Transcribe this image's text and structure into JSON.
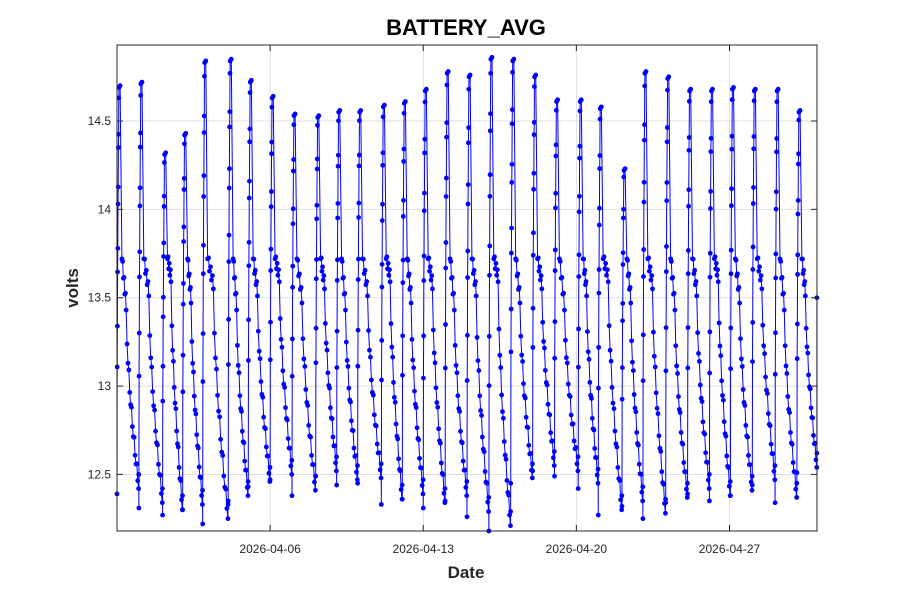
{
  "chart_data": {
    "type": "line",
    "title": "BATTERY_AVG",
    "xlabel": "Date",
    "ylabel": "volts",
    "x_axis_kind": "date",
    "xlim": [
      "2026-03-30T00:00",
      "2026-05-01T00:00"
    ],
    "ylim": [
      12.18,
      14.93
    ],
    "yticks": [
      12.5,
      13,
      13.5,
      14,
      14.5
    ],
    "yticklabels": [
      "12.5",
      "13",
      "13.5",
      "14",
      "14.5"
    ],
    "xticks": [
      "2026-04-06",
      "2026-04-13",
      "2026-04-20",
      "2026-04-27"
    ],
    "xticklabels": [
      "2026-04-06",
      "2026-04-13",
      "2026-04-20",
      "2026-04-27"
    ],
    "grid": true,
    "series": [
      {
        "color": "#0000ff",
        "marker": "circle",
        "daily_cycles": [
          {
            "charge_start": "2026-03-30T00:00",
            "peak": 14.72,
            "min": 12.42
          },
          {
            "charge_start": "2026-03-31T00:00",
            "peak": 14.74,
            "min": 12.34
          },
          {
            "charge_start": "2026-04-01T02:00",
            "peak": 14.34,
            "min": 12.3
          },
          {
            "charge_start": "2026-04-02T00:00",
            "peak": 14.45,
            "min": 12.33
          },
          {
            "charge_start": "2026-04-02T22:00",
            "peak": 14.86,
            "min": 12.25
          },
          {
            "charge_start": "2026-04-04T02:00",
            "peak": 14.87,
            "min": 12.38
          },
          {
            "charge_start": "2026-04-05T00:00",
            "peak": 14.75,
            "min": 12.46
          },
          {
            "charge_start": "2026-04-06T00:00",
            "peak": 14.66,
            "min": 12.5
          },
          {
            "charge_start": "2026-04-07T00:00",
            "peak": 14.56,
            "min": 12.41
          },
          {
            "charge_start": "2026-04-08T02:00",
            "peak": 14.55,
            "min": 12.52
          },
          {
            "charge_start": "2026-04-09T01:00",
            "peak": 14.58,
            "min": 12.47
          },
          {
            "charge_start": "2026-04-10T00:00",
            "peak": 14.58,
            "min": 12.48
          },
          {
            "charge_start": "2026-04-11T02:00",
            "peak": 14.61,
            "min": 12.36
          },
          {
            "charge_start": "2026-04-12T01:00",
            "peak": 14.63,
            "min": 12.39
          },
          {
            "charge_start": "2026-04-13T00:00",
            "peak": 14.7,
            "min": 12.34
          },
          {
            "charge_start": "2026-04-14T00:00",
            "peak": 14.8,
            "min": 12.38
          },
          {
            "charge_start": "2026-04-15T00:00",
            "peak": 14.78,
            "min": 12.29
          },
          {
            "charge_start": "2026-04-16T00:00",
            "peak": 14.88,
            "min": 12.21
          },
          {
            "charge_start": "2026-04-17T00:00",
            "peak": 14.87,
            "min": 12.48
          },
          {
            "charge_start": "2026-04-18T00:00",
            "peak": 14.78,
            "min": 12.55
          },
          {
            "charge_start": "2026-04-19T00:00",
            "peak": 14.64,
            "min": 12.52
          },
          {
            "charge_start": "2026-04-20T02:00",
            "peak": 14.64,
            "min": 12.45
          },
          {
            "charge_start": "2026-04-21T00:00",
            "peak": 14.6,
            "min": 12.3
          },
          {
            "charge_start": "2026-04-22T02:00",
            "peak": 14.25,
            "min": 12.35
          },
          {
            "charge_start": "2026-04-23T01:00",
            "peak": 14.8,
            "min": 12.28
          },
          {
            "charge_start": "2026-04-24T02:00",
            "peak": 14.77,
            "min": 12.37
          },
          {
            "charge_start": "2026-04-25T02:00",
            "peak": 14.7,
            "min": 12.42
          },
          {
            "charge_start": "2026-04-26T02:00",
            "peak": 14.7,
            "min": 12.38
          },
          {
            "charge_start": "2026-04-27T01:00",
            "peak": 14.71,
            "min": 12.41
          },
          {
            "charge_start": "2026-04-28T01:00",
            "peak": 14.7,
            "min": 12.47
          },
          {
            "charge_start": "2026-04-29T02:00",
            "peak": 14.7,
            "min": 12.37
          },
          {
            "charge_start": "2026-04-30T02:00",
            "peak": 14.58,
            "min": 12.54
          }
        ],
        "end_value": 13.5
      }
    ]
  }
}
